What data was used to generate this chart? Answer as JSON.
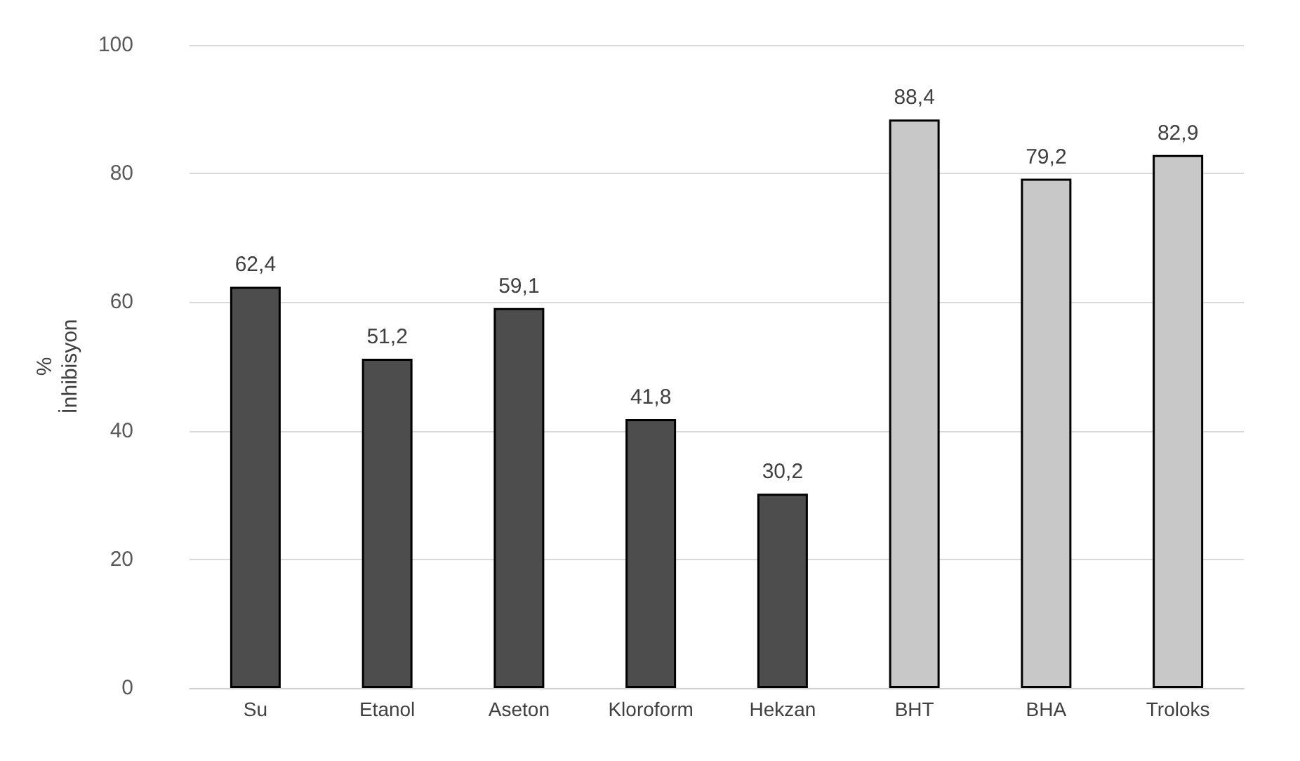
{
  "chart_data": {
    "type": "bar",
    "ylabel": "% İnhibisyon",
    "categories": [
      "Su",
      "Etanol",
      "Aseton",
      "Kloroform",
      "Hekzan",
      "BHT",
      "BHA",
      "Troloks"
    ],
    "values": [
      62.4,
      51.2,
      59.1,
      41.8,
      30.2,
      88.4,
      79.2,
      82.9
    ],
    "value_labels": [
      "62,4",
      "51,2",
      "59,1",
      "41,8",
      "30,2",
      "88,4",
      "79,2",
      "82,9"
    ],
    "colors": [
      "#4d4d4d",
      "#4d4d4d",
      "#4d4d4d",
      "#4d4d4d",
      "#4d4d4d",
      "#c8c8c8",
      "#c8c8c8",
      "#c8c8c8"
    ],
    "ylim": [
      0,
      100
    ],
    "yticks": [
      0,
      20,
      40,
      60,
      80,
      100
    ],
    "grid": "y"
  }
}
